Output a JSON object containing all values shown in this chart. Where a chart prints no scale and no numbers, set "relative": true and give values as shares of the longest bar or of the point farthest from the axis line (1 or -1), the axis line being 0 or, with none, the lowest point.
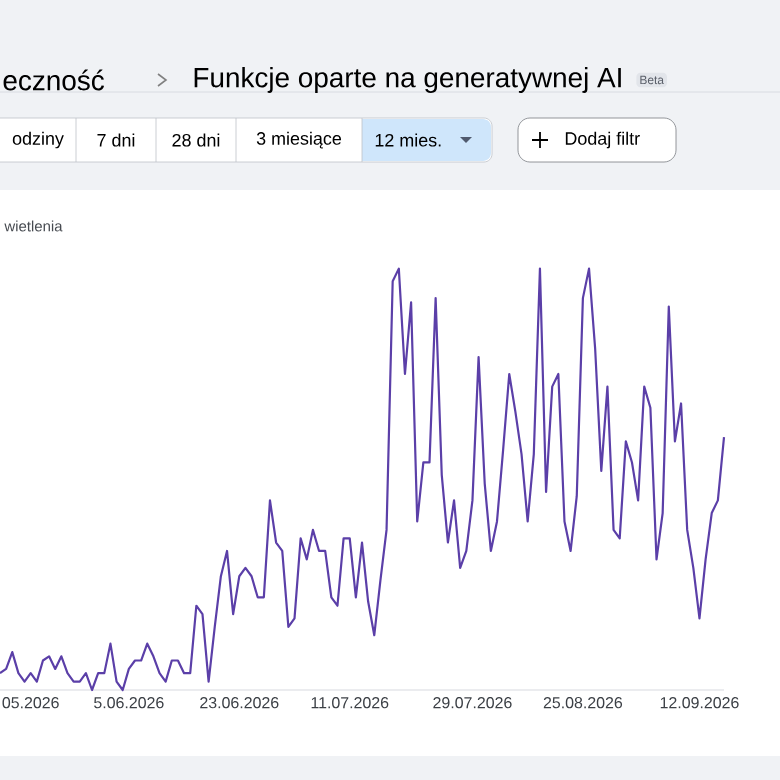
{
  "chart_data": {
    "type": "line",
    "title": "Funkcje oparte na generatywnej AI",
    "ylabel": "wietlenia",
    "annotations": [
      "eczność",
      "Beta",
      "odziny",
      "7 dni",
      "28 dni",
      "3 miesiące",
      "12 mies.",
      "Dodaj filtr"
    ],
    "relative": true,
    "color": "#5b3fa8",
    "marker": "none",
    "line_style": "solid",
    "categories": [
      null,
      null,
      null,
      null,
      null,
      "05.2026",
      null,
      null,
      null,
      null,
      null,
      null,
      null,
      null,
      null,
      null,
      null,
      null,
      null,
      null,
      null,
      "5.06.2026",
      null,
      null,
      null,
      null,
      null,
      null,
      null,
      null,
      null,
      null,
      null,
      null,
      null,
      null,
      null,
      null,
      null,
      "23.06.2026",
      null,
      null,
      null,
      null,
      null,
      null,
      null,
      null,
      null,
      null,
      null,
      null,
      null,
      null,
      null,
      null,
      null,
      "11.07.2026",
      null,
      null,
      null,
      null,
      null,
      null,
      null,
      null,
      null,
      null,
      null,
      null,
      null,
      null,
      null,
      null,
      null,
      null,
      null,
      "29.07.2026",
      null,
      null,
      null,
      null,
      null,
      null,
      null,
      null,
      null,
      null,
      null,
      null,
      null,
      null,
      null,
      null,
      null,
      "25.08.2026",
      null,
      null,
      null,
      null,
      null,
      null,
      null,
      null,
      null,
      null,
      null,
      null,
      null,
      null,
      null,
      null,
      null,
      null,
      "12.09.2026",
      null,
      null,
      null,
      null
    ],
    "values": [
      0.04,
      0.05,
      0.09,
      0.04,
      0.02,
      0.04,
      0.02,
      0.07,
      0.08,
      0.05,
      0.08,
      0.04,
      0.02,
      0.02,
      0.04,
      0,
      0.04,
      0.04,
      0.11,
      0.02,
      0,
      0.05,
      0.07,
      0.07,
      0.11,
      0.08,
      0.04,
      0.02,
      0.07,
      0.07,
      0.04,
      0.04,
      0.2,
      0.18,
      0.02,
      0.15,
      0.27,
      0.33,
      0.18,
      0.27,
      0.29,
      0.27,
      0.22,
      0.22,
      0.45,
      0.35,
      0.33,
      0.15,
      0.17,
      0.36,
      0.31,
      0.38,
      0.33,
      0.33,
      0.22,
      0.2,
      0.36,
      0.36,
      0.22,
      0.35,
      0.21,
      0.13,
      0.26,
      0.38,
      0.97,
      1.0,
      0.75,
      0.92,
      0.4,
      0.54,
      0.54,
      0.93,
      0.51,
      0.35,
      0.45,
      0.29,
      0.33,
      0.45,
      0.79,
      0.49,
      0.33,
      0.4,
      0.57,
      0.75,
      0.66,
      0.56,
      0.4,
      0.56,
      1.0,
      0.47,
      0.72,
      0.75,
      0.4,
      0.33,
      0.46,
      0.93,
      1.0,
      0.81,
      0.52,
      0.72,
      0.38,
      0.36,
      0.59,
      0.54,
      0.45,
      0.72,
      0.67,
      0.31,
      0.42,
      0.91,
      0.59,
      0.68,
      0.38,
      0.29,
      0.17,
      0.31,
      0.42,
      0.45,
      0.6
    ]
  }
}
